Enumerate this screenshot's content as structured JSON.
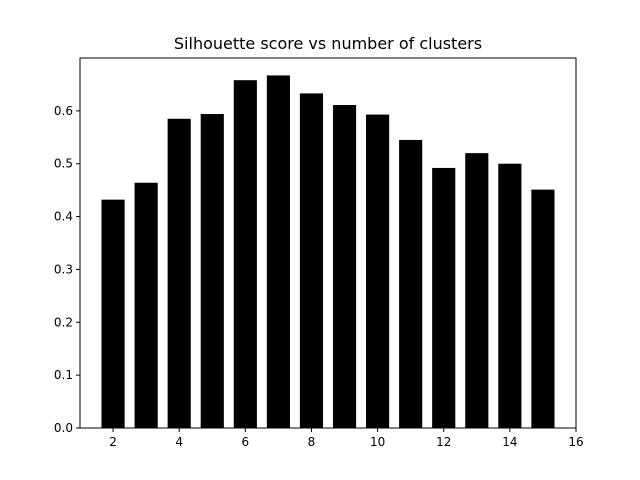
{
  "chart_data": {
    "type": "bar",
    "title": "Silhouette score vs number of clusters",
    "xlabel": "",
    "ylabel": "",
    "x": [
      2,
      3,
      4,
      5,
      6,
      7,
      8,
      9,
      10,
      11,
      12,
      13,
      14,
      15
    ],
    "values": [
      0.432,
      0.464,
      0.585,
      0.594,
      0.658,
      0.667,
      0.633,
      0.611,
      0.593,
      0.545,
      0.492,
      0.52,
      0.5,
      0.451
    ],
    "xlim": [
      1,
      16
    ],
    "ylim": [
      0,
      0.7
    ],
    "xticks": [
      2,
      4,
      6,
      8,
      10,
      12,
      14,
      16
    ],
    "yticks": [
      0.0,
      0.1,
      0.2,
      0.3,
      0.4,
      0.5,
      0.6
    ],
    "bar_width": 0.7,
    "bar_color": "#000000",
    "grid": false,
    "legend": "none"
  }
}
